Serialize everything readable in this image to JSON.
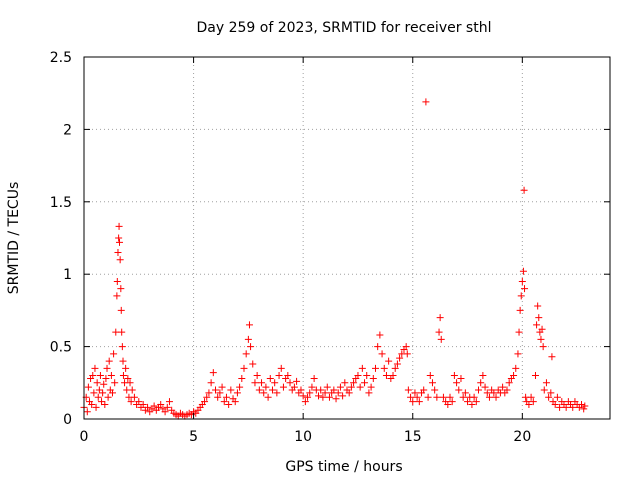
{
  "chart_data": {
    "type": "scatter",
    "title": "Day 259 of 2023, SRMTID for receiver sthl",
    "xlabel": "GPS time / hours",
    "ylabel": "SRMTID / TECUs",
    "xlim": [
      0,
      24
    ],
    "ylim": [
      0,
      2.5
    ],
    "xticks": [
      "0",
      "5",
      "10",
      "15",
      "20"
    ],
    "xtick_values": [
      0,
      5,
      10,
      15,
      20
    ],
    "yticks": [
      "0",
      "0.5",
      "1",
      "1.5",
      "2",
      "2.5"
    ],
    "ytick_values": [
      0,
      0.5,
      1,
      1.5,
      2,
      2.5
    ],
    "grid": true,
    "marker": "+",
    "series": [
      {
        "name": "SRMTID",
        "color": "#ff0000",
        "points": [
          [
            0.0,
            0.08
          ],
          [
            0.1,
            0.15
          ],
          [
            0.15,
            0.05
          ],
          [
            0.2,
            0.22
          ],
          [
            0.25,
            0.12
          ],
          [
            0.3,
            0.28
          ],
          [
            0.35,
            0.1
          ],
          [
            0.4,
            0.3
          ],
          [
            0.45,
            0.18
          ],
          [
            0.5,
            0.35
          ],
          [
            0.55,
            0.08
          ],
          [
            0.6,
            0.25
          ],
          [
            0.65,
            0.15
          ],
          [
            0.7,
            0.2
          ],
          [
            0.75,
            0.3
          ],
          [
            0.8,
            0.12
          ],
          [
            0.85,
            0.18
          ],
          [
            0.9,
            0.24
          ],
          [
            0.95,
            0.1
          ],
          [
            1.0,
            0.28
          ],
          [
            1.05,
            0.35
          ],
          [
            1.1,
            0.15
          ],
          [
            1.15,
            0.4
          ],
          [
            1.2,
            0.2
          ],
          [
            1.25,
            0.3
          ],
          [
            1.3,
            0.18
          ],
          [
            1.35,
            0.45
          ],
          [
            1.4,
            0.25
          ],
          [
            1.45,
            0.6
          ],
          [
            1.5,
            0.85
          ],
          [
            1.52,
            0.95
          ],
          [
            1.55,
            1.15
          ],
          [
            1.58,
            1.25
          ],
          [
            1.6,
            1.33
          ],
          [
            1.62,
            1.22
          ],
          [
            1.65,
            1.1
          ],
          [
            1.68,
            0.9
          ],
          [
            1.7,
            0.75
          ],
          [
            1.72,
            0.6
          ],
          [
            1.75,
            0.5
          ],
          [
            1.78,
            0.4
          ],
          [
            1.8,
            0.3
          ],
          [
            1.85,
            0.25
          ],
          [
            1.9,
            0.35
          ],
          [
            1.95,
            0.2
          ],
          [
            2.0,
            0.28
          ],
          [
            2.05,
            0.15
          ],
          [
            2.1,
            0.25
          ],
          [
            2.15,
            0.12
          ],
          [
            2.2,
            0.2
          ],
          [
            2.3,
            0.15
          ],
          [
            2.4,
            0.1
          ],
          [
            2.5,
            0.12
          ],
          [
            2.6,
            0.08
          ],
          [
            2.7,
            0.1
          ],
          [
            2.8,
            0.06
          ],
          [
            2.9,
            0.08
          ],
          [
            3.0,
            0.05
          ],
          [
            3.1,
            0.07
          ],
          [
            3.2,
            0.09
          ],
          [
            3.3,
            0.06
          ],
          [
            3.4,
            0.08
          ],
          [
            3.5,
            0.1
          ],
          [
            3.6,
            0.07
          ],
          [
            3.7,
            0.05
          ],
          [
            3.8,
            0.08
          ],
          [
            3.9,
            0.12
          ],
          [
            4.0,
            0.06
          ],
          [
            4.1,
            0.04
          ],
          [
            4.2,
            0.03
          ],
          [
            4.3,
            0.02
          ],
          [
            4.4,
            0.04
          ],
          [
            4.5,
            0.03
          ],
          [
            4.6,
            0.02
          ],
          [
            4.7,
            0.03
          ],
          [
            4.8,
            0.04
          ],
          [
            4.9,
            0.03
          ],
          [
            5.0,
            0.05
          ],
          [
            5.1,
            0.04
          ],
          [
            5.2,
            0.06
          ],
          [
            5.3,
            0.08
          ],
          [
            5.4,
            0.1
          ],
          [
            5.5,
            0.12
          ],
          [
            5.6,
            0.15
          ],
          [
            5.7,
            0.18
          ],
          [
            5.8,
            0.25
          ],
          [
            5.9,
            0.32
          ],
          [
            6.0,
            0.2
          ],
          [
            6.1,
            0.15
          ],
          [
            6.2,
            0.18
          ],
          [
            6.3,
            0.22
          ],
          [
            6.4,
            0.12
          ],
          [
            6.5,
            0.15
          ],
          [
            6.6,
            0.1
          ],
          [
            6.7,
            0.2
          ],
          [
            6.8,
            0.14
          ],
          [
            6.9,
            0.12
          ],
          [
            7.0,
            0.18
          ],
          [
            7.1,
            0.22
          ],
          [
            7.2,
            0.28
          ],
          [
            7.3,
            0.35
          ],
          [
            7.4,
            0.45
          ],
          [
            7.5,
            0.55
          ],
          [
            7.55,
            0.65
          ],
          [
            7.6,
            0.5
          ],
          [
            7.7,
            0.38
          ],
          [
            7.8,
            0.25
          ],
          [
            7.9,
            0.3
          ],
          [
            8.0,
            0.2
          ],
          [
            8.1,
            0.25
          ],
          [
            8.2,
            0.18
          ],
          [
            8.3,
            0.22
          ],
          [
            8.4,
            0.15
          ],
          [
            8.5,
            0.28
          ],
          [
            8.6,
            0.2
          ],
          [
            8.7,
            0.25
          ],
          [
            8.8,
            0.18
          ],
          [
            8.9,
            0.3
          ],
          [
            9.0,
            0.35
          ],
          [
            9.1,
            0.22
          ],
          [
            9.2,
            0.28
          ],
          [
            9.3,
            0.3
          ],
          [
            9.4,
            0.25
          ],
          [
            9.5,
            0.2
          ],
          [
            9.6,
            0.22
          ],
          [
            9.7,
            0.26
          ],
          [
            9.8,
            0.18
          ],
          [
            9.9,
            0.2
          ],
          [
            10.0,
            0.16
          ],
          [
            10.1,
            0.12
          ],
          [
            10.2,
            0.15
          ],
          [
            10.3,
            0.18
          ],
          [
            10.4,
            0.22
          ],
          [
            10.5,
            0.28
          ],
          [
            10.6,
            0.2
          ],
          [
            10.7,
            0.16
          ],
          [
            10.8,
            0.2
          ],
          [
            10.9,
            0.15
          ],
          [
            11.0,
            0.18
          ],
          [
            11.1,
            0.22
          ],
          [
            11.2,
            0.15
          ],
          [
            11.3,
            0.18
          ],
          [
            11.4,
            0.2
          ],
          [
            11.5,
            0.14
          ],
          [
            11.6,
            0.18
          ],
          [
            11.7,
            0.22
          ],
          [
            11.8,
            0.16
          ],
          [
            11.9,
            0.25
          ],
          [
            12.0,
            0.2
          ],
          [
            12.1,
            0.18
          ],
          [
            12.2,
            0.22
          ],
          [
            12.3,
            0.25
          ],
          [
            12.4,
            0.28
          ],
          [
            12.5,
            0.3
          ],
          [
            12.6,
            0.22
          ],
          [
            12.7,
            0.35
          ],
          [
            12.8,
            0.25
          ],
          [
            12.9,
            0.3
          ],
          [
            13.0,
            0.18
          ],
          [
            13.1,
            0.22
          ],
          [
            13.2,
            0.28
          ],
          [
            13.3,
            0.35
          ],
          [
            13.4,
            0.5
          ],
          [
            13.5,
            0.58
          ],
          [
            13.6,
            0.45
          ],
          [
            13.7,
            0.35
          ],
          [
            13.8,
            0.3
          ],
          [
            13.9,
            0.4
          ],
          [
            14.0,
            0.28
          ],
          [
            14.1,
            0.3
          ],
          [
            14.2,
            0.35
          ],
          [
            14.3,
            0.38
          ],
          [
            14.4,
            0.42
          ],
          [
            14.5,
            0.45
          ],
          [
            14.6,
            0.48
          ],
          [
            14.7,
            0.5
          ],
          [
            14.75,
            0.45
          ],
          [
            14.8,
            0.2
          ],
          [
            14.9,
            0.15
          ],
          [
            15.0,
            0.12
          ],
          [
            15.1,
            0.18
          ],
          [
            15.2,
            0.15
          ],
          [
            15.3,
            0.12
          ],
          [
            15.4,
            0.18
          ],
          [
            15.5,
            0.2
          ],
          [
            15.6,
            2.19
          ],
          [
            15.7,
            0.15
          ],
          [
            15.8,
            0.3
          ],
          [
            15.9,
            0.25
          ],
          [
            16.0,
            0.2
          ],
          [
            16.1,
            0.15
          ],
          [
            16.2,
            0.6
          ],
          [
            16.25,
            0.7
          ],
          [
            16.3,
            0.55
          ],
          [
            16.4,
            0.15
          ],
          [
            16.5,
            0.12
          ],
          [
            16.6,
            0.1
          ],
          [
            16.7,
            0.15
          ],
          [
            16.8,
            0.12
          ],
          [
            16.9,
            0.3
          ],
          [
            17.0,
            0.25
          ],
          [
            17.1,
            0.2
          ],
          [
            17.2,
            0.28
          ],
          [
            17.3,
            0.15
          ],
          [
            17.4,
            0.18
          ],
          [
            17.5,
            0.12
          ],
          [
            17.6,
            0.15
          ],
          [
            17.7,
            0.1
          ],
          [
            17.8,
            0.15
          ],
          [
            17.9,
            0.12
          ],
          [
            18.0,
            0.2
          ],
          [
            18.1,
            0.25
          ],
          [
            18.2,
            0.3
          ],
          [
            18.3,
            0.22
          ],
          [
            18.4,
            0.18
          ],
          [
            18.5,
            0.15
          ],
          [
            18.6,
            0.2
          ],
          [
            18.7,
            0.18
          ],
          [
            18.8,
            0.15
          ],
          [
            18.9,
            0.2
          ],
          [
            19.0,
            0.18
          ],
          [
            19.1,
            0.22
          ],
          [
            19.2,
            0.18
          ],
          [
            19.3,
            0.2
          ],
          [
            19.4,
            0.25
          ],
          [
            19.5,
            0.28
          ],
          [
            19.6,
            0.3
          ],
          [
            19.7,
            0.35
          ],
          [
            19.8,
            0.45
          ],
          [
            19.85,
            0.6
          ],
          [
            19.9,
            0.75
          ],
          [
            19.95,
            0.85
          ],
          [
            20.0,
            0.95
          ],
          [
            20.05,
            1.02
          ],
          [
            20.08,
            1.58
          ],
          [
            20.1,
            0.9
          ],
          [
            20.15,
            0.15
          ],
          [
            20.2,
            0.12
          ],
          [
            20.3,
            0.1
          ],
          [
            20.4,
            0.15
          ],
          [
            20.5,
            0.12
          ],
          [
            20.6,
            0.3
          ],
          [
            20.65,
            0.65
          ],
          [
            20.7,
            0.78
          ],
          [
            20.75,
            0.7
          ],
          [
            20.8,
            0.6
          ],
          [
            20.85,
            0.55
          ],
          [
            20.9,
            0.62
          ],
          [
            20.95,
            0.5
          ],
          [
            21.0,
            0.2
          ],
          [
            21.1,
            0.25
          ],
          [
            21.2,
            0.15
          ],
          [
            21.3,
            0.18
          ],
          [
            21.35,
            0.43
          ],
          [
            21.4,
            0.12
          ],
          [
            21.5,
            0.1
          ],
          [
            21.6,
            0.15
          ],
          [
            21.7,
            0.08
          ],
          [
            21.8,
            0.12
          ],
          [
            21.9,
            0.1
          ],
          [
            22.0,
            0.08
          ],
          [
            22.1,
            0.12
          ],
          [
            22.2,
            0.1
          ],
          [
            22.3,
            0.08
          ],
          [
            22.4,
            0.12
          ],
          [
            22.5,
            0.1
          ],
          [
            22.6,
            0.08
          ],
          [
            22.7,
            0.1
          ],
          [
            22.8,
            0.07
          ],
          [
            22.85,
            0.09
          ]
        ]
      }
    ]
  }
}
